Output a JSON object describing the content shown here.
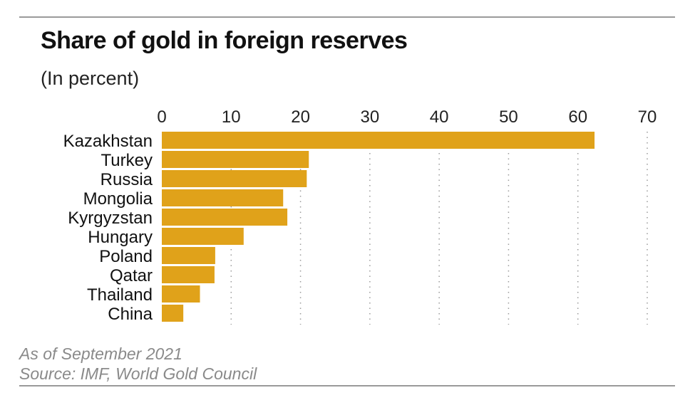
{
  "chart_data": {
    "type": "bar",
    "orientation": "horizontal",
    "title": "Share of gold in foreign reserves",
    "subtitle": "(In percent)",
    "xlabel": "",
    "ylabel": "",
    "xlim": [
      0,
      70
    ],
    "xticks": [
      0,
      10,
      20,
      30,
      40,
      50,
      60,
      70
    ],
    "tick_position": "top",
    "grid": "vertical dotted",
    "categories": [
      "Kazakhstan",
      "Turkey",
      "Russia",
      "Mongolia",
      "Kyrgyzstan",
      "Hungary",
      "Poland",
      "Qatar",
      "Thailand",
      "China"
    ],
    "values": [
      62.4,
      21.2,
      20.9,
      17.5,
      18.1,
      11.8,
      7.7,
      7.6,
      5.5,
      3.1
    ],
    "bar_color": "#E0A21A",
    "notes": [
      "As of September 2021",
      "Source: IMF, World Gold Council"
    ]
  }
}
